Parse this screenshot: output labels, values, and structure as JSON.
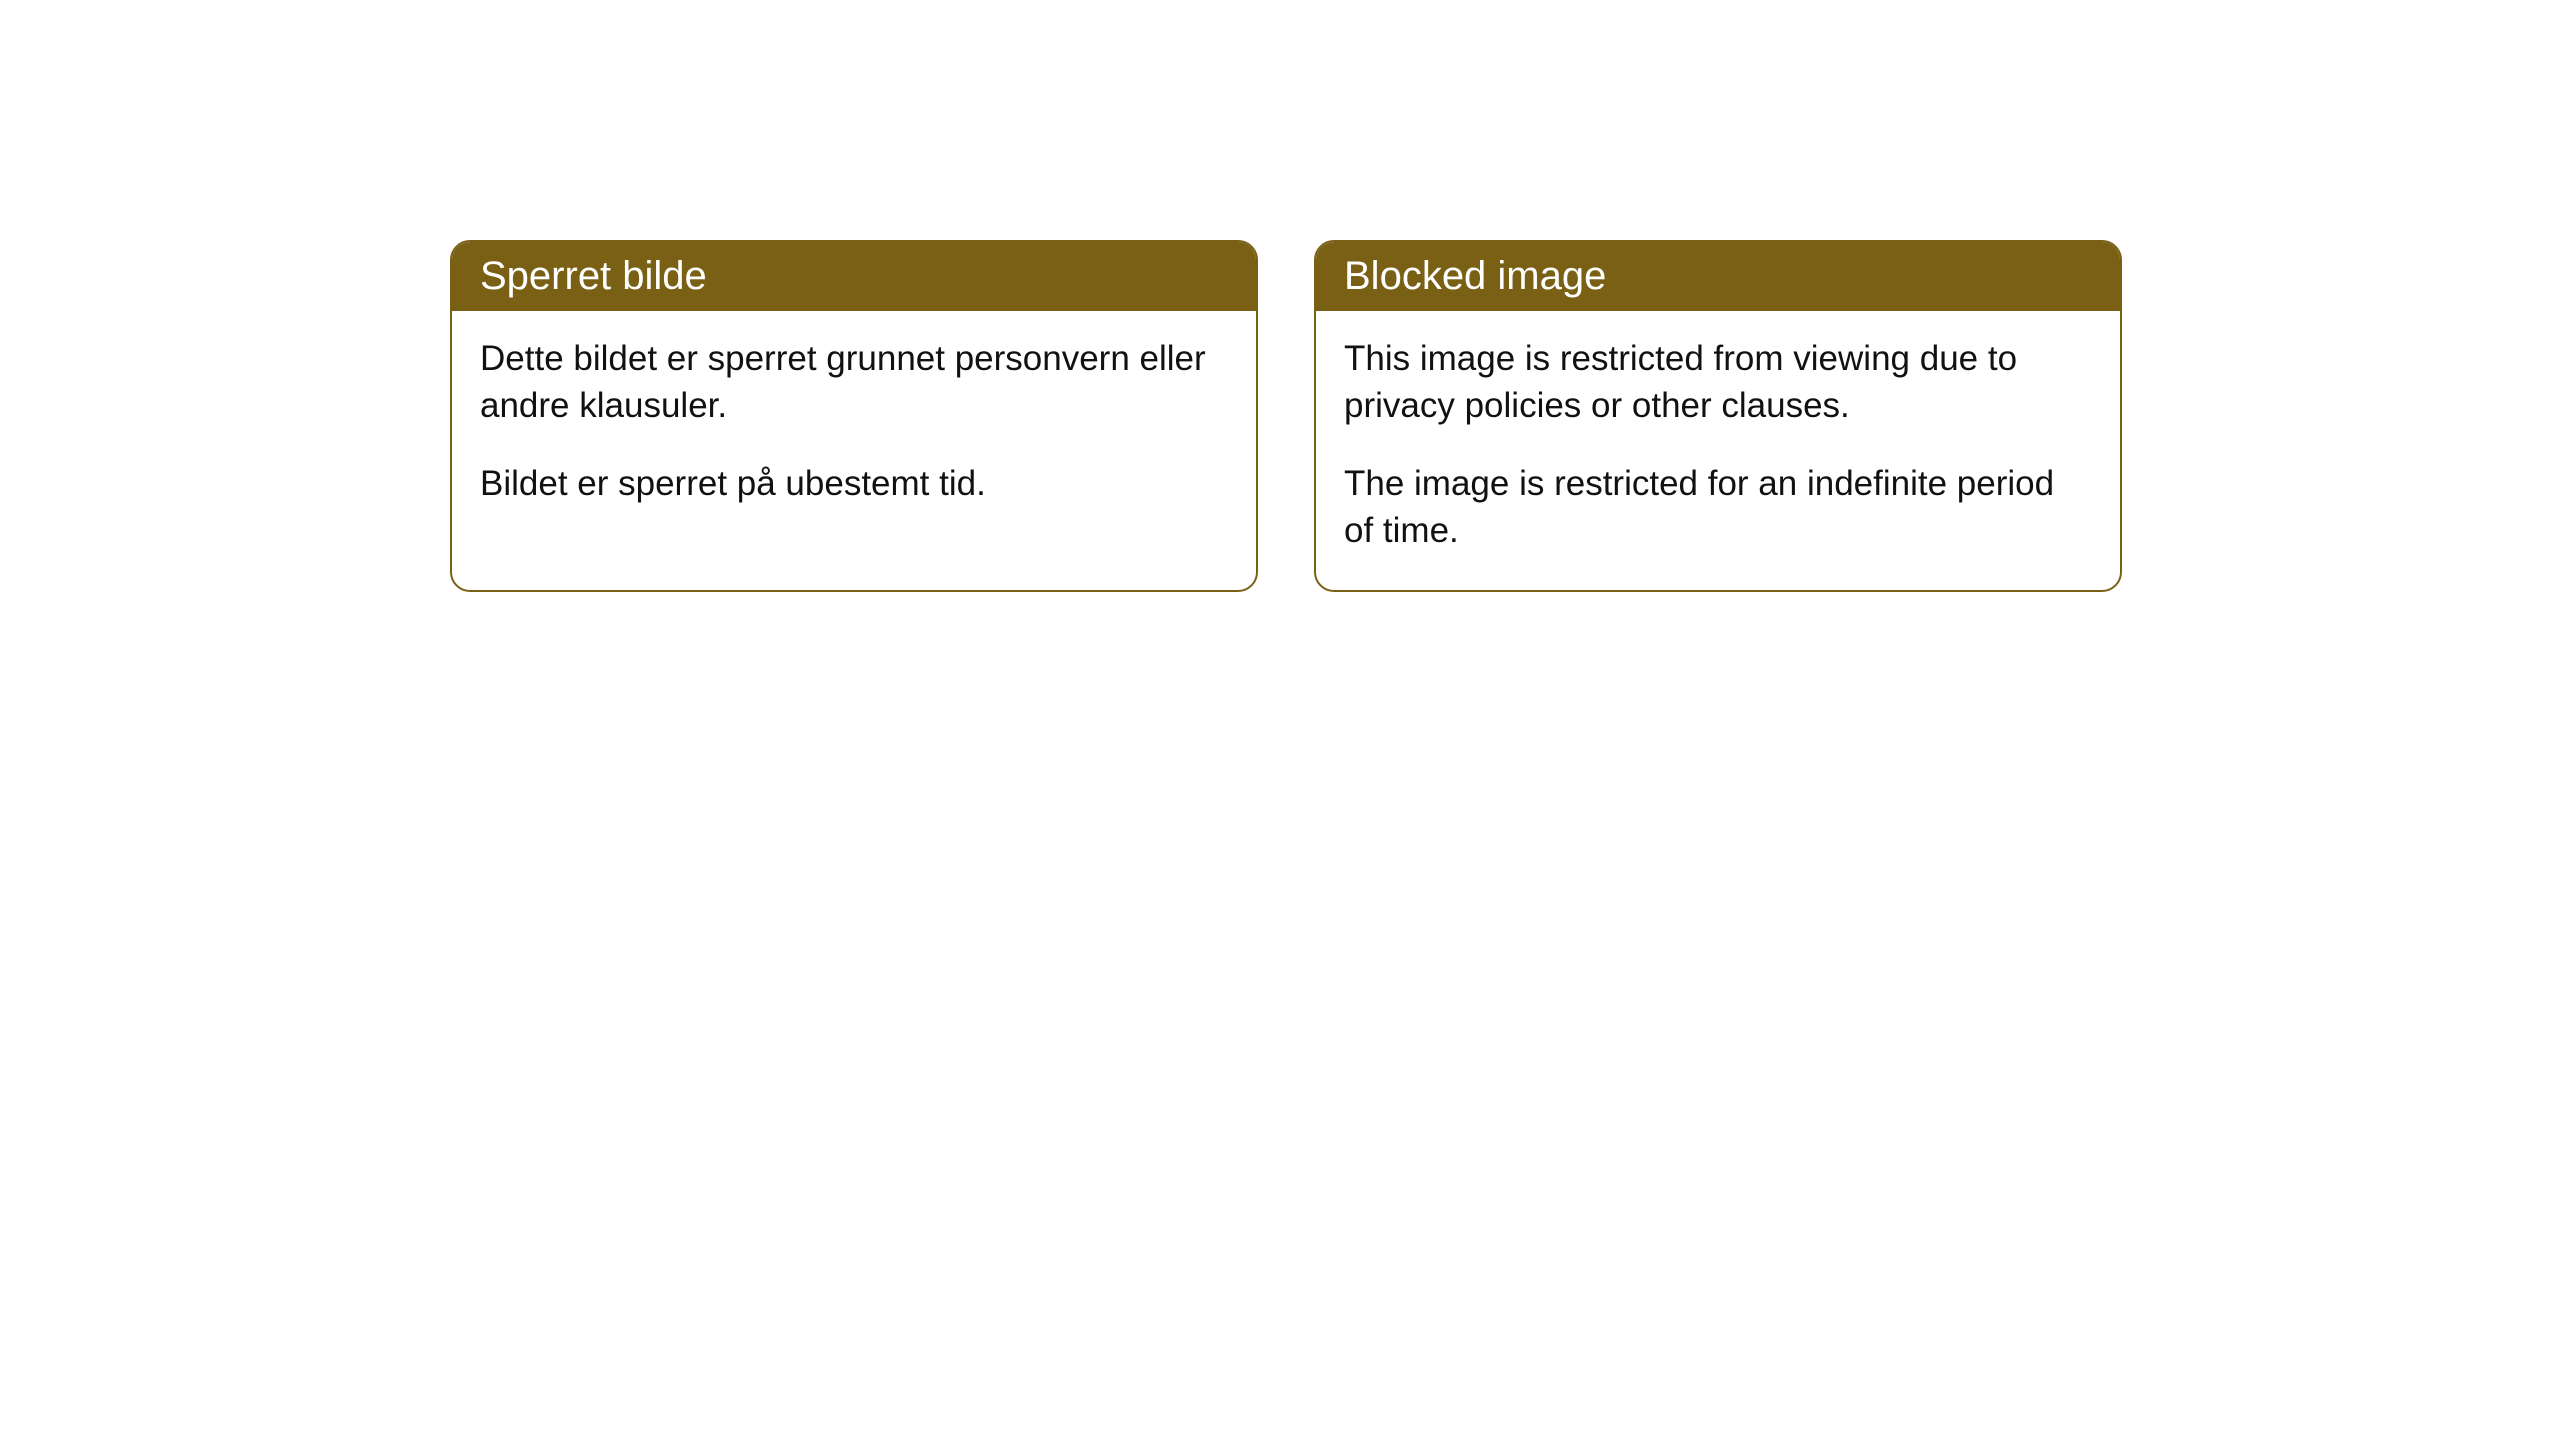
{
  "cards": [
    {
      "title": "Sperret bilde",
      "para1": "Dette bildet er sperret grunnet personvern eller andre klausuler.",
      "para2": "Bildet er sperret på ubestemt tid."
    },
    {
      "title": "Blocked image",
      "para1": "This image is restricted from viewing due to privacy policies or other clauses.",
      "para2": "The image is restricted for an indefinite period of time."
    }
  ],
  "colors": {
    "header_bg": "#796014",
    "header_text": "#ffffff",
    "border": "#796014",
    "body_bg": "#ffffff",
    "body_text": "#111111"
  },
  "typography": {
    "title_fontsize": 40,
    "body_fontsize": 35
  }
}
